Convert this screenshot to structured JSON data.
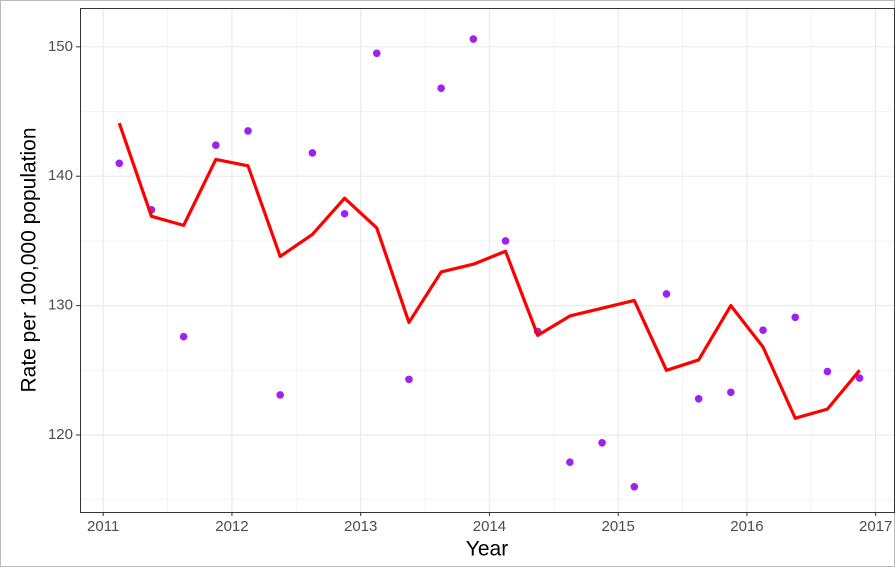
{
  "chart_data": {
    "type": "line",
    "xlabel": "Year",
    "ylabel": "Rate per 100,000 population",
    "x": [
      2011.125,
      2011.375,
      2011.625,
      2011.875,
      2012.125,
      2012.375,
      2012.625,
      2012.875,
      2013.125,
      2013.375,
      2013.625,
      2013.875,
      2014.125,
      2014.375,
      2014.625,
      2014.875,
      2015.125,
      2015.375,
      2015.625,
      2015.875,
      2016.125,
      2016.375,
      2016.625,
      2016.875
    ],
    "series": [
      {
        "type": "scatter",
        "color": "#a020f0",
        "values": [
          141.0,
          137.4,
          127.6,
          142.4,
          143.5,
          123.1,
          141.8,
          137.1,
          149.5,
          124.3,
          146.8,
          150.6,
          135.0,
          128.0,
          117.9,
          119.4,
          116.0,
          130.9,
          122.8,
          123.3,
          128.1,
          129.1,
          124.9,
          124.4
        ]
      },
      {
        "type": "line",
        "color": "#ff0000",
        "values": [
          144.1,
          136.9,
          136.2,
          141.3,
          140.8,
          133.8,
          135.5,
          138.3,
          136.0,
          128.7,
          132.6,
          133.2,
          134.2,
          127.7,
          129.2,
          129.8,
          130.4,
          125.0,
          125.8,
          130.0,
          126.8,
          121.3,
          122.0,
          125.0
        ]
      }
    ],
    "xlim": [
      2010.82,
      2017.15
    ],
    "ylim": [
      114.05,
      153.0
    ],
    "xticks": [
      2011,
      2012,
      2013,
      2014,
      2015,
      2016,
      2017
    ],
    "yticks": [
      120,
      130,
      140,
      150
    ],
    "x_minor_ticks": [
      2011.5,
      2012.5,
      2013.5,
      2014.5,
      2015.5,
      2016.5
    ],
    "y_minor_ticks": [
      115,
      125,
      135,
      145
    ],
    "grid": true
  }
}
